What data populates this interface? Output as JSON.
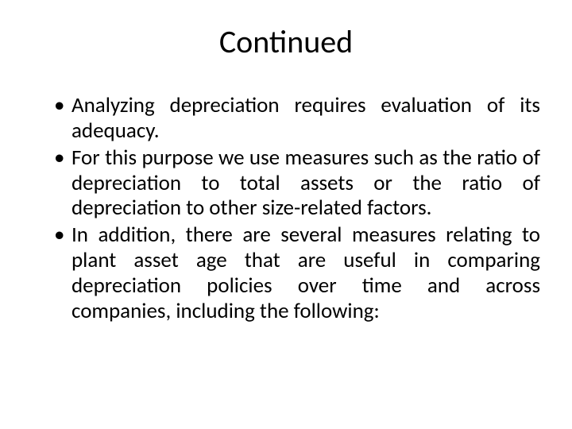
{
  "slide": {
    "title": "Continued",
    "title_fontsize": 40,
    "title_color": "#000000",
    "body_fontsize": 27,
    "body_color": "#000000",
    "background_color": "#ffffff",
    "bullets": [
      "Analyzing depreciation requires evaluation of its adequacy.",
      "For this purpose we use measures such as the ratio of depreciation to total assets or the ratio of depreciation to other size-related factors.",
      "In addition, there are several measures relating to plant asset age that are useful in comparing depreciation policies over time and across companies, including the following:"
    ]
  }
}
